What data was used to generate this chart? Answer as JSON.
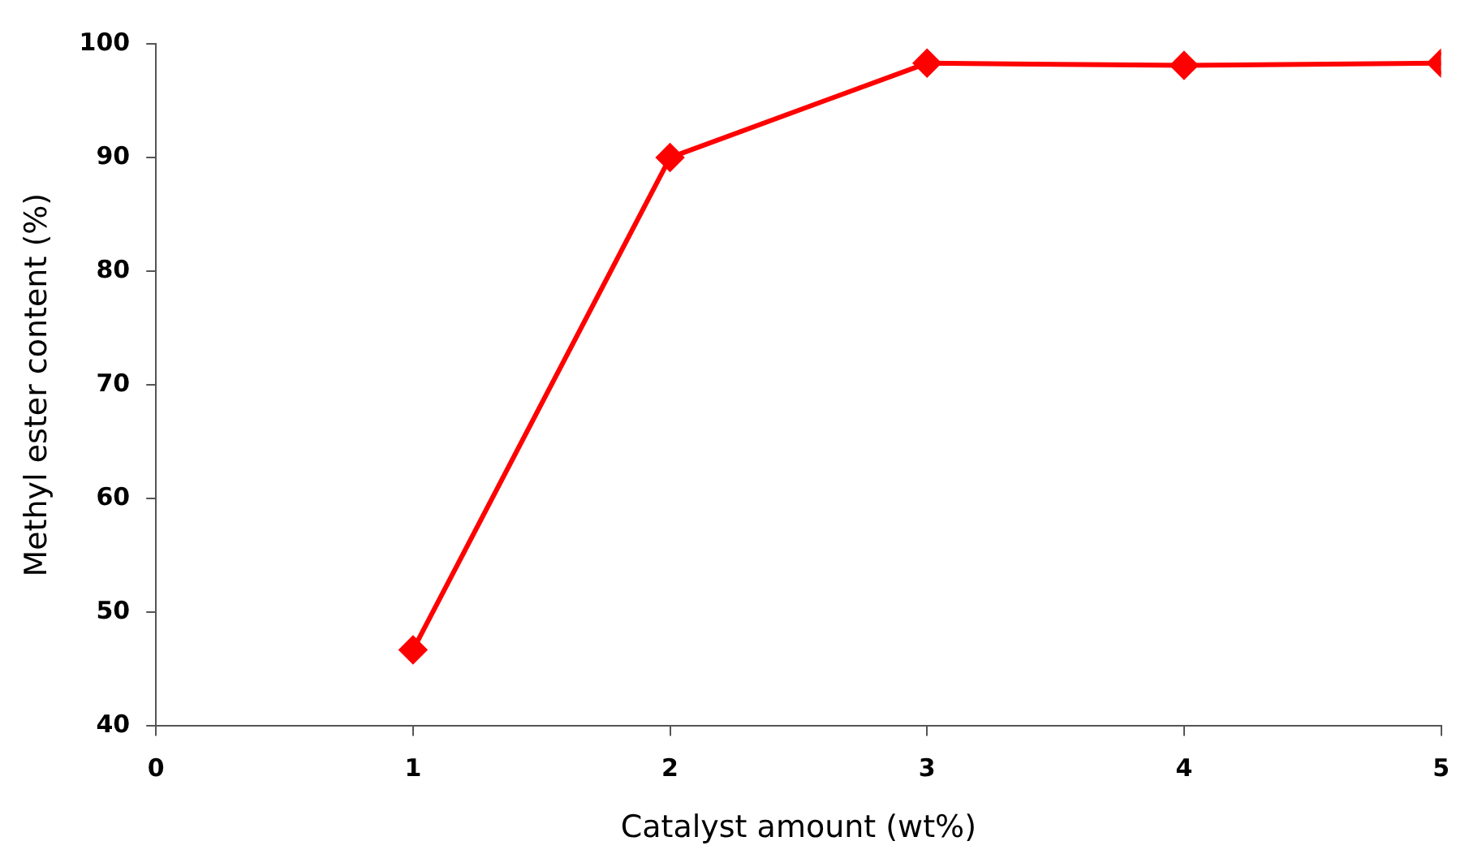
{
  "chart_data": {
    "type": "line",
    "xlabel": "Catalyst amount (wt%)",
    "ylabel": "Methyl ester content (%)",
    "x": [
      1,
      2,
      3,
      4,
      5
    ],
    "series": [
      {
        "color": "#ff0000",
        "values": [
          46.7,
          90,
          98.3,
          98.1,
          98.3
        ]
      }
    ],
    "xlim": [
      0,
      5
    ],
    "xticks": [
      0,
      1,
      2,
      3,
      4,
      5
    ],
    "ylim": [
      40,
      100
    ],
    "yticks": [
      40,
      50,
      60,
      70,
      80,
      90,
      100
    ],
    "grid": false,
    "legend": false,
    "marker": "diamond",
    "line_style": "solid"
  }
}
